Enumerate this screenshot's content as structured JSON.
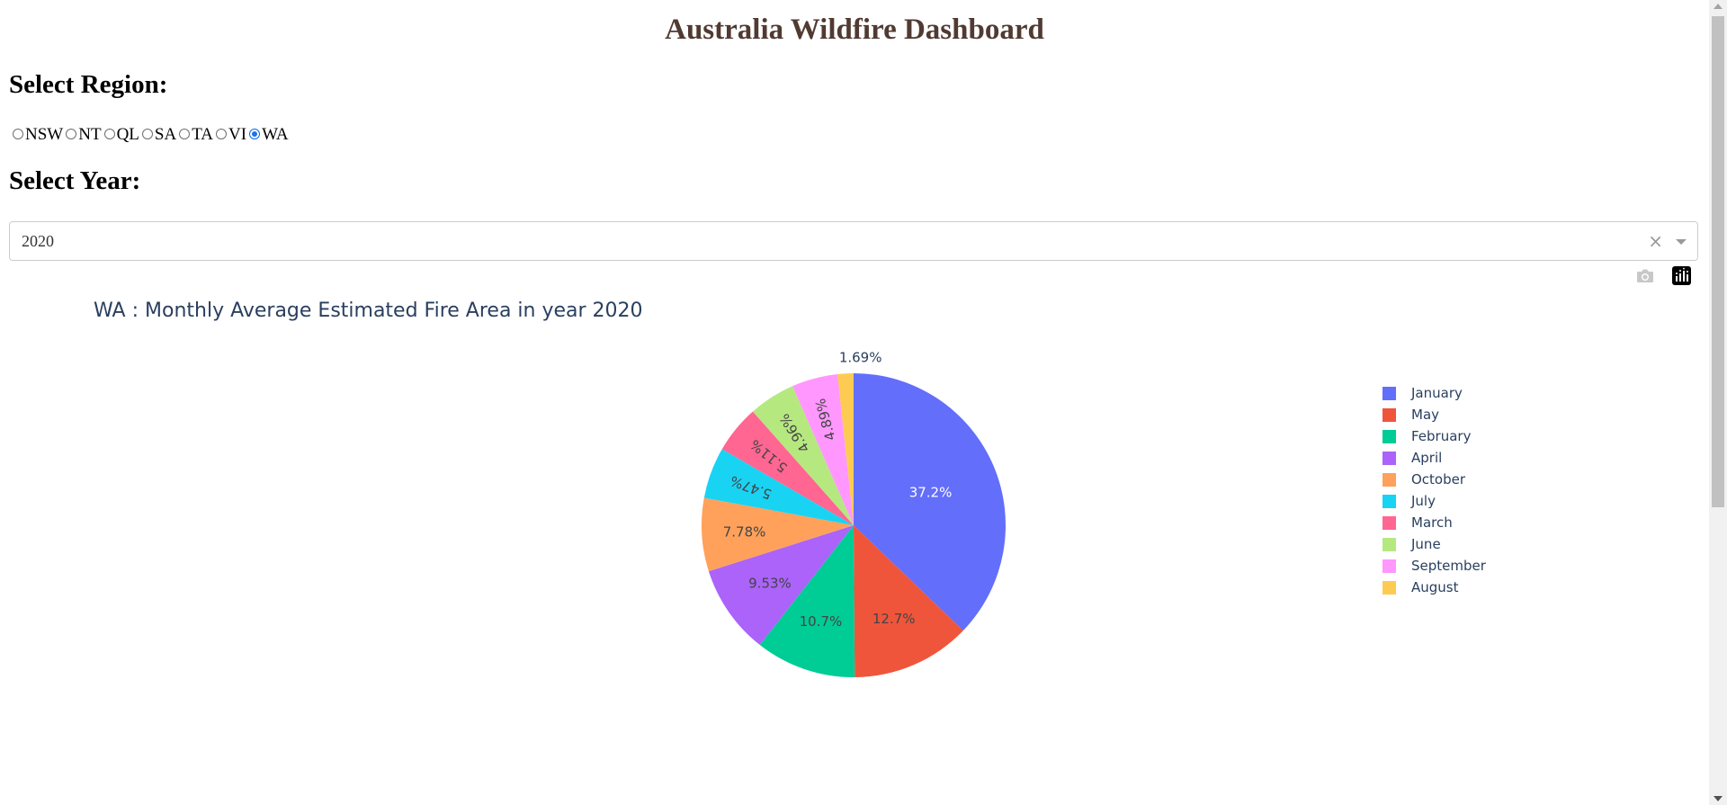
{
  "header": {
    "title": "Australia Wildfire Dashboard"
  },
  "region": {
    "heading": "Select Region:",
    "options": [
      "NSW",
      "NT",
      "QL",
      "SA",
      "TA",
      "VI",
      "WA"
    ],
    "selected": "WA"
  },
  "year": {
    "heading": "Select Year:",
    "value": "2020",
    "clear_icon": "×"
  },
  "modebar": {
    "icons": [
      "camera-icon",
      "plotly-logo-icon"
    ]
  },
  "chart_data": {
    "type": "pie",
    "title": "WA : Monthly Average Estimated Fire Area in year 2020",
    "labels": [
      "January",
      "May",
      "February",
      "April",
      "October",
      "July",
      "March",
      "June",
      "September",
      "August"
    ],
    "values": [
      37.2,
      12.7,
      10.7,
      9.53,
      7.78,
      5.47,
      5.11,
      4.96,
      4.89,
      1.69
    ],
    "text": [
      "37.2%",
      "12.7%",
      "10.7%",
      "9.53%",
      "7.78%",
      "5.47%",
      "5.11%",
      "4.96%",
      "4.89%",
      "1.69%"
    ],
    "colors": [
      "#636efa",
      "#EF553B",
      "#00cc96",
      "#ab63fa",
      "#FFA15A",
      "#19d3f3",
      "#FF6692",
      "#B6E880",
      "#FF97FF",
      "#FECB52"
    ],
    "direction": "clockwise",
    "legend": "right"
  }
}
